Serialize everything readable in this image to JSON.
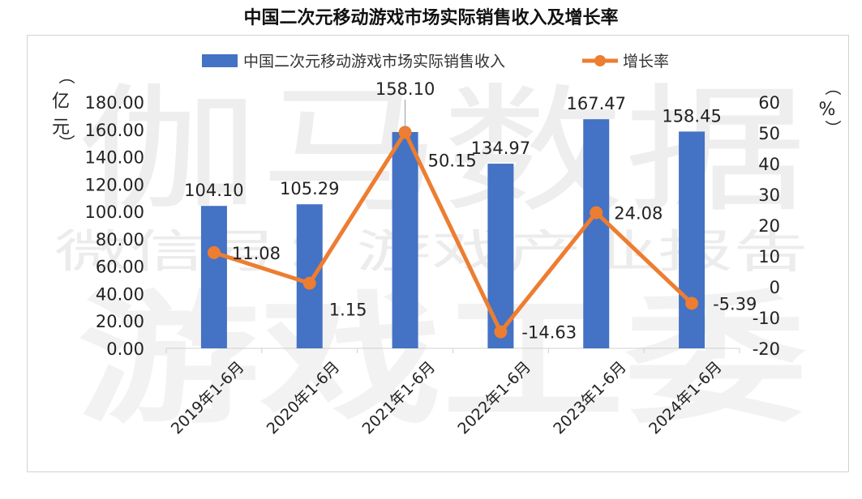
{
  "title": "中国二次元移动游戏市场实际销售收入及增长率",
  "watermark": {
    "line1": "伽马数据",
    "line2": "微信号：游戏产业报告",
    "line3": "游戏工委"
  },
  "chart_data": {
    "type": "bar+line",
    "categories": [
      "2019年1-6月",
      "2020年1-6月",
      "2021年1-6月",
      "2022年1-6月",
      "2023年1-6月",
      "2024年1-6月"
    ],
    "series": [
      {
        "name": "中国二次元移动游戏市场实际销售收入",
        "type": "bar",
        "axis": "left",
        "color": "#4472c4",
        "values": [
          104.1,
          105.29,
          158.1,
          134.97,
          167.47,
          158.45
        ],
        "labels": [
          "104.10",
          "105.29",
          "158.10",
          "134.97",
          "167.47",
          "158.45"
        ]
      },
      {
        "name": "增长率",
        "type": "line",
        "axis": "right",
        "color": "#ed7d31",
        "values": [
          11.08,
          1.15,
          50.15,
          -14.63,
          24.08,
          -5.39
        ],
        "labels": [
          "11.08",
          "1.15",
          "50.15",
          "-14.63",
          "24.08",
          "-5.39"
        ]
      }
    ],
    "y_left": {
      "unit": "（亿元）",
      "min": 0,
      "max": 180,
      "ticks": [
        "0.00",
        "20.00",
        "40.00",
        "60.00",
        "80.00",
        "100.00",
        "120.00",
        "140.00",
        "160.00",
        "180.00"
      ]
    },
    "y_right": {
      "unit": "（%）",
      "min": -20,
      "max": 60,
      "ticks": [
        "-20",
        "-10",
        "0",
        "10",
        "20",
        "30",
        "40",
        "50",
        "60"
      ]
    },
    "legend_position": "top",
    "grid": false
  }
}
